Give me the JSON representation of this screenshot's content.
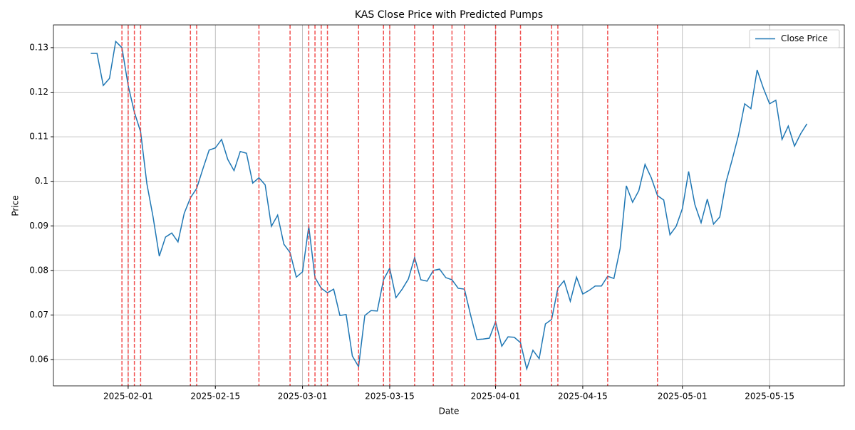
{
  "chart_data": {
    "type": "line",
    "title": "KAS Close Price with Predicted Pumps",
    "x_label": "Date",
    "y_label": "Price",
    "x": [
      "2025-01-26",
      "2025-01-27",
      "2025-01-28",
      "2025-01-29",
      "2025-01-30",
      "2025-01-31",
      "2025-02-01",
      "2025-02-02",
      "2025-02-03",
      "2025-02-04",
      "2025-02-05",
      "2025-02-06",
      "2025-02-07",
      "2025-02-08",
      "2025-02-09",
      "2025-02-10",
      "2025-02-11",
      "2025-02-12",
      "2025-02-13",
      "2025-02-14",
      "2025-02-15",
      "2025-02-16",
      "2025-02-17",
      "2025-02-18",
      "2025-02-19",
      "2025-02-20",
      "2025-02-21",
      "2025-02-22",
      "2025-02-23",
      "2025-02-24",
      "2025-02-25",
      "2025-02-26",
      "2025-02-27",
      "2025-02-28",
      "2025-03-01",
      "2025-03-02",
      "2025-03-03",
      "2025-03-04",
      "2025-03-05",
      "2025-03-06",
      "2025-03-07",
      "2025-03-08",
      "2025-03-09",
      "2025-03-10",
      "2025-03-11",
      "2025-03-12",
      "2025-03-13",
      "2025-03-14",
      "2025-03-15",
      "2025-03-16",
      "2025-03-17",
      "2025-03-18",
      "2025-03-19",
      "2025-03-20",
      "2025-03-21",
      "2025-03-22",
      "2025-03-23",
      "2025-03-24",
      "2025-03-25",
      "2025-03-26",
      "2025-03-27",
      "2025-03-28",
      "2025-03-29",
      "2025-03-30",
      "2025-03-31",
      "2025-04-01",
      "2025-04-02",
      "2025-04-03",
      "2025-04-04",
      "2025-04-05",
      "2025-04-06",
      "2025-04-07",
      "2025-04-08",
      "2025-04-09",
      "2025-04-10",
      "2025-04-11",
      "2025-04-12",
      "2025-04-13",
      "2025-04-14",
      "2025-04-15",
      "2025-04-16",
      "2025-04-17",
      "2025-04-18",
      "2025-04-19",
      "2025-04-20",
      "2025-04-21",
      "2025-04-22",
      "2025-04-23",
      "2025-04-24",
      "2025-04-25",
      "2025-04-26",
      "2025-04-27",
      "2025-04-28",
      "2025-04-29",
      "2025-04-30",
      "2025-05-01",
      "2025-05-02",
      "2025-05-03",
      "2025-05-04",
      "2025-05-05",
      "2025-05-06",
      "2025-05-07",
      "2025-05-08",
      "2025-05-09",
      "2025-05-10",
      "2025-05-11",
      "2025-05-12",
      "2025-05-13",
      "2025-05-14",
      "2025-05-15",
      "2025-05-16",
      "2025-05-17",
      "2025-05-18",
      "2025-05-19",
      "2025-05-20",
      "2025-05-21"
    ],
    "series": [
      {
        "name": "Close Price",
        "color": "#1f77b4",
        "values": [
          0.1287,
          0.1287,
          0.1215,
          0.1231,
          0.1314,
          0.13,
          0.1215,
          0.1155,
          0.1111,
          0.0995,
          0.092,
          0.0832,
          0.0875,
          0.0884,
          0.0864,
          0.0928,
          0.0963,
          0.0984,
          0.1028,
          0.107,
          0.1075,
          0.1094,
          0.1049,
          0.1024,
          0.1067,
          0.1063,
          0.0996,
          0.1008,
          0.0992,
          0.0899,
          0.0924,
          0.0859,
          0.084,
          0.0785,
          0.0797,
          0.0899,
          0.0784,
          0.076,
          0.075,
          0.0758,
          0.0699,
          0.0701,
          0.0608,
          0.0584,
          0.0699,
          0.071,
          0.0709,
          0.0779,
          0.0805,
          0.0739,
          0.0758,
          0.0781,
          0.0829,
          0.0779,
          0.0776,
          0.08,
          0.0803,
          0.0784,
          0.0779,
          0.076,
          0.0758,
          0.0699,
          0.0645,
          0.0646,
          0.0648,
          0.0685,
          0.063,
          0.0651,
          0.065,
          0.0638,
          0.0579,
          0.0621,
          0.0602,
          0.068,
          0.069,
          0.076,
          0.0777,
          0.0731,
          0.0785,
          0.0747,
          0.0755,
          0.0765,
          0.0765,
          0.0787,
          0.0782,
          0.0849,
          0.099,
          0.0953,
          0.0979,
          0.1038,
          0.1008,
          0.0968,
          0.0958,
          0.088,
          0.0899,
          0.0939,
          0.1022,
          0.0948,
          0.0907,
          0.096,
          0.0904,
          0.092,
          0.0998,
          0.1049,
          0.1103,
          0.1174,
          0.1163,
          0.125,
          0.1209,
          0.1174,
          0.1182,
          0.1094,
          0.1124,
          0.1079,
          0.1107,
          0.1129
        ]
      }
    ],
    "pump_dates": [
      "2025-01-31",
      "2025-02-01",
      "2025-02-02",
      "2025-02-03",
      "2025-02-11",
      "2025-02-12",
      "2025-02-22",
      "2025-02-27",
      "2025-03-02",
      "2025-03-03",
      "2025-03-04",
      "2025-03-05",
      "2025-03-10",
      "2025-03-14",
      "2025-03-15",
      "2025-03-19",
      "2025-03-22",
      "2025-03-25",
      "2025-03-27",
      "2025-04-01",
      "2025-04-05",
      "2025-04-10",
      "2025-04-11",
      "2025-04-19",
      "2025-04-27"
    ],
    "pump_color": "#f03c3c",
    "xlim": [
      "2025-01-20",
      "2025-05-27"
    ],
    "xticks": [
      "2025-02-01",
      "2025-02-15",
      "2025-03-01",
      "2025-03-15",
      "2025-04-01",
      "2025-04-15",
      "2025-05-01",
      "2025-05-15"
    ],
    "ylim": [
      0.0541,
      0.1351
    ],
    "yticks": [
      0.06,
      0.07,
      0.08,
      0.09,
      0.1,
      0.11,
      0.12,
      0.13
    ],
    "grid": true,
    "legend": "upper right"
  }
}
